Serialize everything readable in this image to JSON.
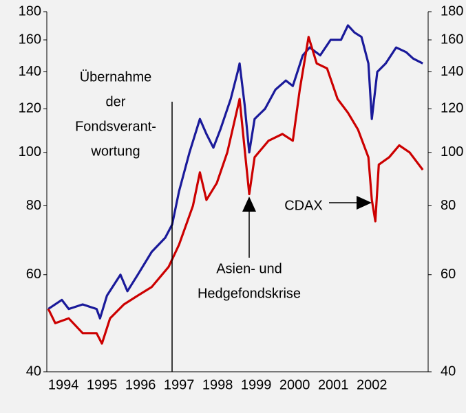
{
  "chart_data": {
    "type": "line",
    "yscale": "log",
    "ylim": [
      40,
      180
    ],
    "yticks": [
      40,
      60,
      80,
      100,
      120,
      140,
      160,
      180
    ],
    "y2lim": [
      40,
      180
    ],
    "y2ticks": [
      40,
      60,
      80,
      100,
      120,
      140,
      160,
      180
    ],
    "xlim": [
      1994.07,
      2003.96
    ],
    "xticks": [
      {
        "value": 1994.5,
        "label": "1994"
      },
      {
        "value": 1995.5,
        "label": "1995"
      },
      {
        "value": 1996.5,
        "label": "1996"
      },
      {
        "value": 1997.5,
        "label": "1997"
      },
      {
        "value": 1998.5,
        "label": "1998"
      },
      {
        "value": 1999.5,
        "label": "1999"
      },
      {
        "value": 2000.5,
        "label": "2000"
      },
      {
        "value": 2001.5,
        "label": "2001"
      },
      {
        "value": 2002.5,
        "label": "2002"
      }
    ],
    "series": [
      {
        "color": "#1a1a9a",
        "x": [
          1994.11,
          1994.46,
          1994.64,
          1995.0,
          1995.36,
          1995.45,
          1995.63,
          1995.98,
          1996.16,
          1996.43,
          1996.79,
          1997.14,
          1997.32,
          1997.5,
          1997.77,
          1998.04,
          1998.21,
          1998.39,
          1998.57,
          1998.84,
          1999.02,
          1999.07,
          1999.2,
          1999.32,
          1999.46,
          1999.73,
          2000.0,
          2000.27,
          2000.45,
          2000.71,
          2000.89,
          2001.16,
          2001.43,
          2001.7,
          2001.88,
          2002.05,
          2002.23,
          2002.41,
          2002.5,
          2002.64,
          2002.86,
          2003.13,
          2003.39,
          2003.57,
          2003.82
        ],
        "values": [
          52,
          54,
          52,
          53,
          52,
          50,
          55,
          60,
          56,
          60,
          66,
          70,
          74,
          85,
          100,
          115,
          108,
          102,
          110,
          125,
          140,
          145,
          122,
          100,
          115,
          120,
          130,
          135,
          132,
          150,
          155,
          150,
          160,
          160,
          170,
          165,
          162,
          145,
          115,
          140,
          145,
          155,
          152,
          148,
          145
        ]
      },
      {
        "color": "#cc0000",
        "x": [
          1994.11,
          1994.29,
          1994.64,
          1995.0,
          1995.36,
          1995.5,
          1995.71,
          1996.07,
          1996.43,
          1996.79,
          1997.23,
          1997.5,
          1997.86,
          1998.04,
          1998.21,
          1998.48,
          1998.75,
          1999.07,
          1999.21,
          1999.32,
          1999.46,
          1999.82,
          2000.18,
          2000.45,
          2000.63,
          2000.86,
          2001.07,
          2001.34,
          2001.61,
          2001.88,
          2002.14,
          2002.41,
          2002.5,
          2002.59,
          2002.68,
          2002.95,
          2003.21,
          2003.48,
          2003.82
        ],
        "values": [
          52,
          49,
          50,
          47,
          47,
          45,
          50,
          53,
          55,
          57,
          62,
          68,
          80,
          92,
          82,
          88,
          100,
          125,
          100,
          84,
          98,
          105,
          108,
          105,
          130,
          162,
          145,
          142,
          125,
          118,
          110,
          98,
          82,
          75,
          95,
          98,
          103,
          100,
          93
        ]
      }
    ],
    "annotations": [
      {
        "lines": [
          "Übernahme",
          "der",
          "Fondsverant-",
          "wortung"
        ]
      },
      {
        "lines": [
          "Asien- und",
          "Hedgefondskrise"
        ]
      },
      {
        "lines": [
          "CDAX"
        ]
      }
    ]
  }
}
